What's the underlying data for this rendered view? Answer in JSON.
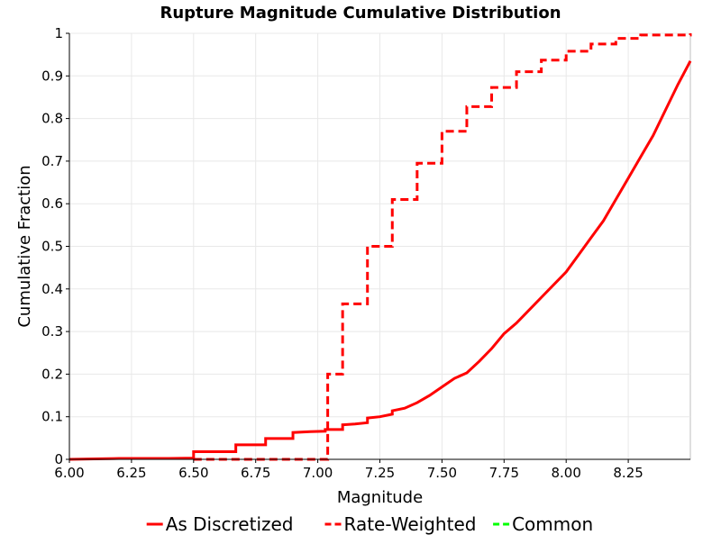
{
  "chart_data": {
    "type": "line",
    "title": "Rupture Magnitude Cumulative Distribution",
    "xlabel": "Magnitude",
    "ylabel": "Cumulative Fraction",
    "xlim": [
      6.0,
      8.5
    ],
    "ylim": [
      0,
      1
    ],
    "x_ticks": [
      "6.00",
      "6.25",
      "6.50",
      "6.75",
      "7.00",
      "7.25",
      "7.50",
      "7.75",
      "8.00",
      "8.25"
    ],
    "x_tick_values": [
      6.0,
      6.25,
      6.5,
      6.75,
      7.0,
      7.25,
      7.5,
      7.75,
      8.0,
      8.25
    ],
    "y_ticks": [
      "0",
      "0.1",
      "0.2",
      "0.3",
      "0.4",
      "0.5",
      "0.6",
      "0.7",
      "0.8",
      "0.9",
      "1"
    ],
    "y_tick_values": [
      0,
      0.1,
      0.2,
      0.3,
      0.4,
      0.5,
      0.6,
      0.7,
      0.8,
      0.9,
      1.0
    ],
    "grid": true,
    "legend_position": "bottom",
    "series": [
      {
        "name": "As Discretized",
        "color": "#ff0000",
        "style": "solid",
        "step": false,
        "x": [
          6.0,
          6.1,
          6.2,
          6.3,
          6.4,
          6.5,
          6.5,
          6.67,
          6.67,
          6.79,
          6.79,
          6.9,
          6.9,
          6.97,
          7.03,
          7.03,
          7.1,
          7.1,
          7.15,
          7.2,
          7.2,
          7.25,
          7.3,
          7.3,
          7.35,
          7.4,
          7.45,
          7.5,
          7.55,
          7.6,
          7.65,
          7.7,
          7.75,
          7.8,
          7.85,
          7.9,
          7.95,
          8.0,
          8.05,
          8.1,
          8.15,
          8.2,
          8.25,
          8.3,
          8.35,
          8.4,
          8.45,
          8.5
        ],
        "y": [
          0.0,
          0.001,
          0.002,
          0.002,
          0.002,
          0.003,
          0.018,
          0.018,
          0.034,
          0.034,
          0.049,
          0.049,
          0.063,
          0.065,
          0.066,
          0.07,
          0.07,
          0.081,
          0.083,
          0.086,
          0.097,
          0.1,
          0.106,
          0.114,
          0.12,
          0.133,
          0.15,
          0.17,
          0.19,
          0.203,
          0.23,
          0.26,
          0.295,
          0.32,
          0.35,
          0.38,
          0.41,
          0.44,
          0.48,
          0.52,
          0.56,
          0.61,
          0.66,
          0.71,
          0.76,
          0.82,
          0.88,
          0.935
        ]
      },
      {
        "name": "Rate-Weighted",
        "color": "#ff0000",
        "style": "dashed",
        "step": true,
        "x": [
          6.5,
          7.04,
          7.1,
          7.2,
          7.3,
          7.4,
          7.5,
          7.6,
          7.7,
          7.8,
          7.9,
          8.0,
          8.1,
          8.2,
          8.3,
          8.5,
          8.5
        ],
        "y": [
          0.0,
          0.2,
          0.365,
          0.5,
          0.61,
          0.695,
          0.77,
          0.828,
          0.873,
          0.91,
          0.937,
          0.958,
          0.975,
          0.988,
          0.996,
          1.0,
          1.0
        ]
      },
      {
        "name": "Common",
        "color": "#00ff00",
        "style": "dashed",
        "step": false,
        "x": [],
        "y": []
      }
    ]
  }
}
